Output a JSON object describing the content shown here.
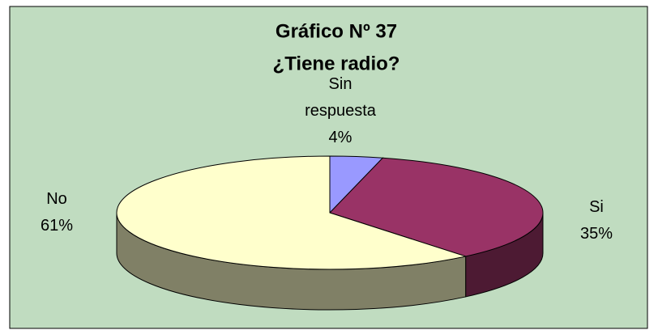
{
  "chart_data": {
    "type": "pie",
    "title": "Gráfico Nº 37",
    "subtitle": "¿Tiene radio?",
    "categories": [
      "Sin respuesta",
      "Si",
      "No"
    ],
    "values": [
      4,
      35,
      61
    ],
    "value_labels": [
      "4%",
      "35%",
      "61%"
    ],
    "colors": [
      "#9999ff",
      "#993366",
      "#ffffcc"
    ],
    "three_d": true
  }
}
